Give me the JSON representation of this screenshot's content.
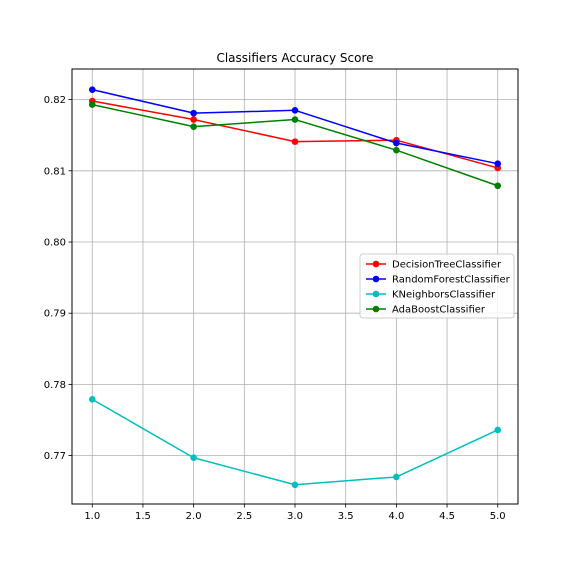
{
  "chart_data": {
    "type": "line",
    "title": "Classifiers Accuracy Score",
    "xlabel": "",
    "ylabel": "",
    "x": [
      1.0,
      2.0,
      3.0,
      4.0,
      5.0
    ],
    "xlim": [
      0.8,
      5.2
    ],
    "ylim": [
      0.7632,
      0.8243
    ],
    "xticks": [
      1.0,
      1.5,
      2.0,
      2.5,
      3.0,
      3.5,
      4.0,
      4.5,
      5.0
    ],
    "xtick_labels": [
      "1.0",
      "1.5",
      "2.0",
      "2.5",
      "3.0",
      "3.5",
      "4.0",
      "4.5",
      "5.0"
    ],
    "yticks": [
      0.77,
      0.78,
      0.79,
      0.8,
      0.81,
      0.82
    ],
    "ytick_labels": [
      "0.77",
      "0.78",
      "0.79",
      "0.80",
      "0.81",
      "0.82"
    ],
    "grid": true,
    "legend_position": "center-right",
    "series": [
      {
        "name": "DecisionTreeClassifier",
        "color": "#ff0000",
        "values": [
          0.8198,
          0.8172,
          0.8141,
          0.8143,
          0.8104
        ]
      },
      {
        "name": "RandomForestClassifier",
        "color": "#0000ff",
        "values": [
          0.8214,
          0.8181,
          0.8185,
          0.8139,
          0.811
        ]
      },
      {
        "name": "KNeighborsClassifier",
        "color": "#00bfbf",
        "values": [
          0.7779,
          0.7697,
          0.7659,
          0.767,
          0.7736
        ]
      },
      {
        "name": "AdaBoostClassifier",
        "color": "#008000",
        "values": [
          0.8193,
          0.8162,
          0.8172,
          0.8129,
          0.8079
        ]
      }
    ]
  }
}
